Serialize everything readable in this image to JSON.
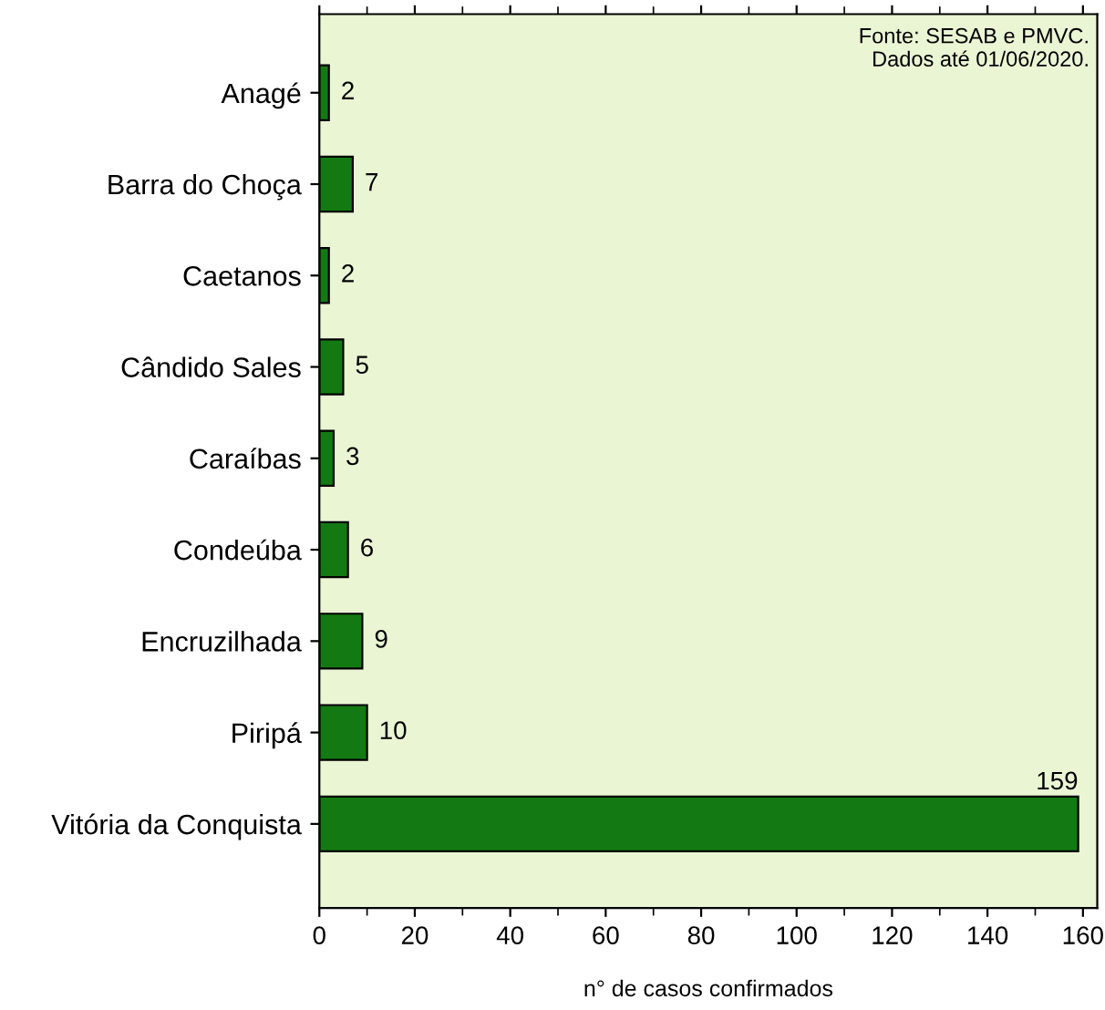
{
  "chart_data": {
    "type": "bar",
    "orientation": "horizontal",
    "categories": [
      "Anagé",
      "Barra do Choça",
      "Caetanos",
      "Cândido Sales",
      "Caraíbas",
      "Condeúba",
      "Encruzilhada",
      "Piripá",
      "Vitória da Conquista"
    ],
    "values": [
      2,
      7,
      2,
      5,
      3,
      6,
      9,
      10,
      159
    ],
    "color": "#137a13",
    "data_labels": true,
    "xlabel": "n° de casos confirmados",
    "xlim": [
      0,
      163
    ],
    "xticks": [
      0,
      20,
      40,
      60,
      80,
      100,
      120,
      140,
      160
    ],
    "annotations": [
      "Fonte: SESAB e PMVC.\nDados até 01/06/2020."
    ],
    "grid": false
  }
}
